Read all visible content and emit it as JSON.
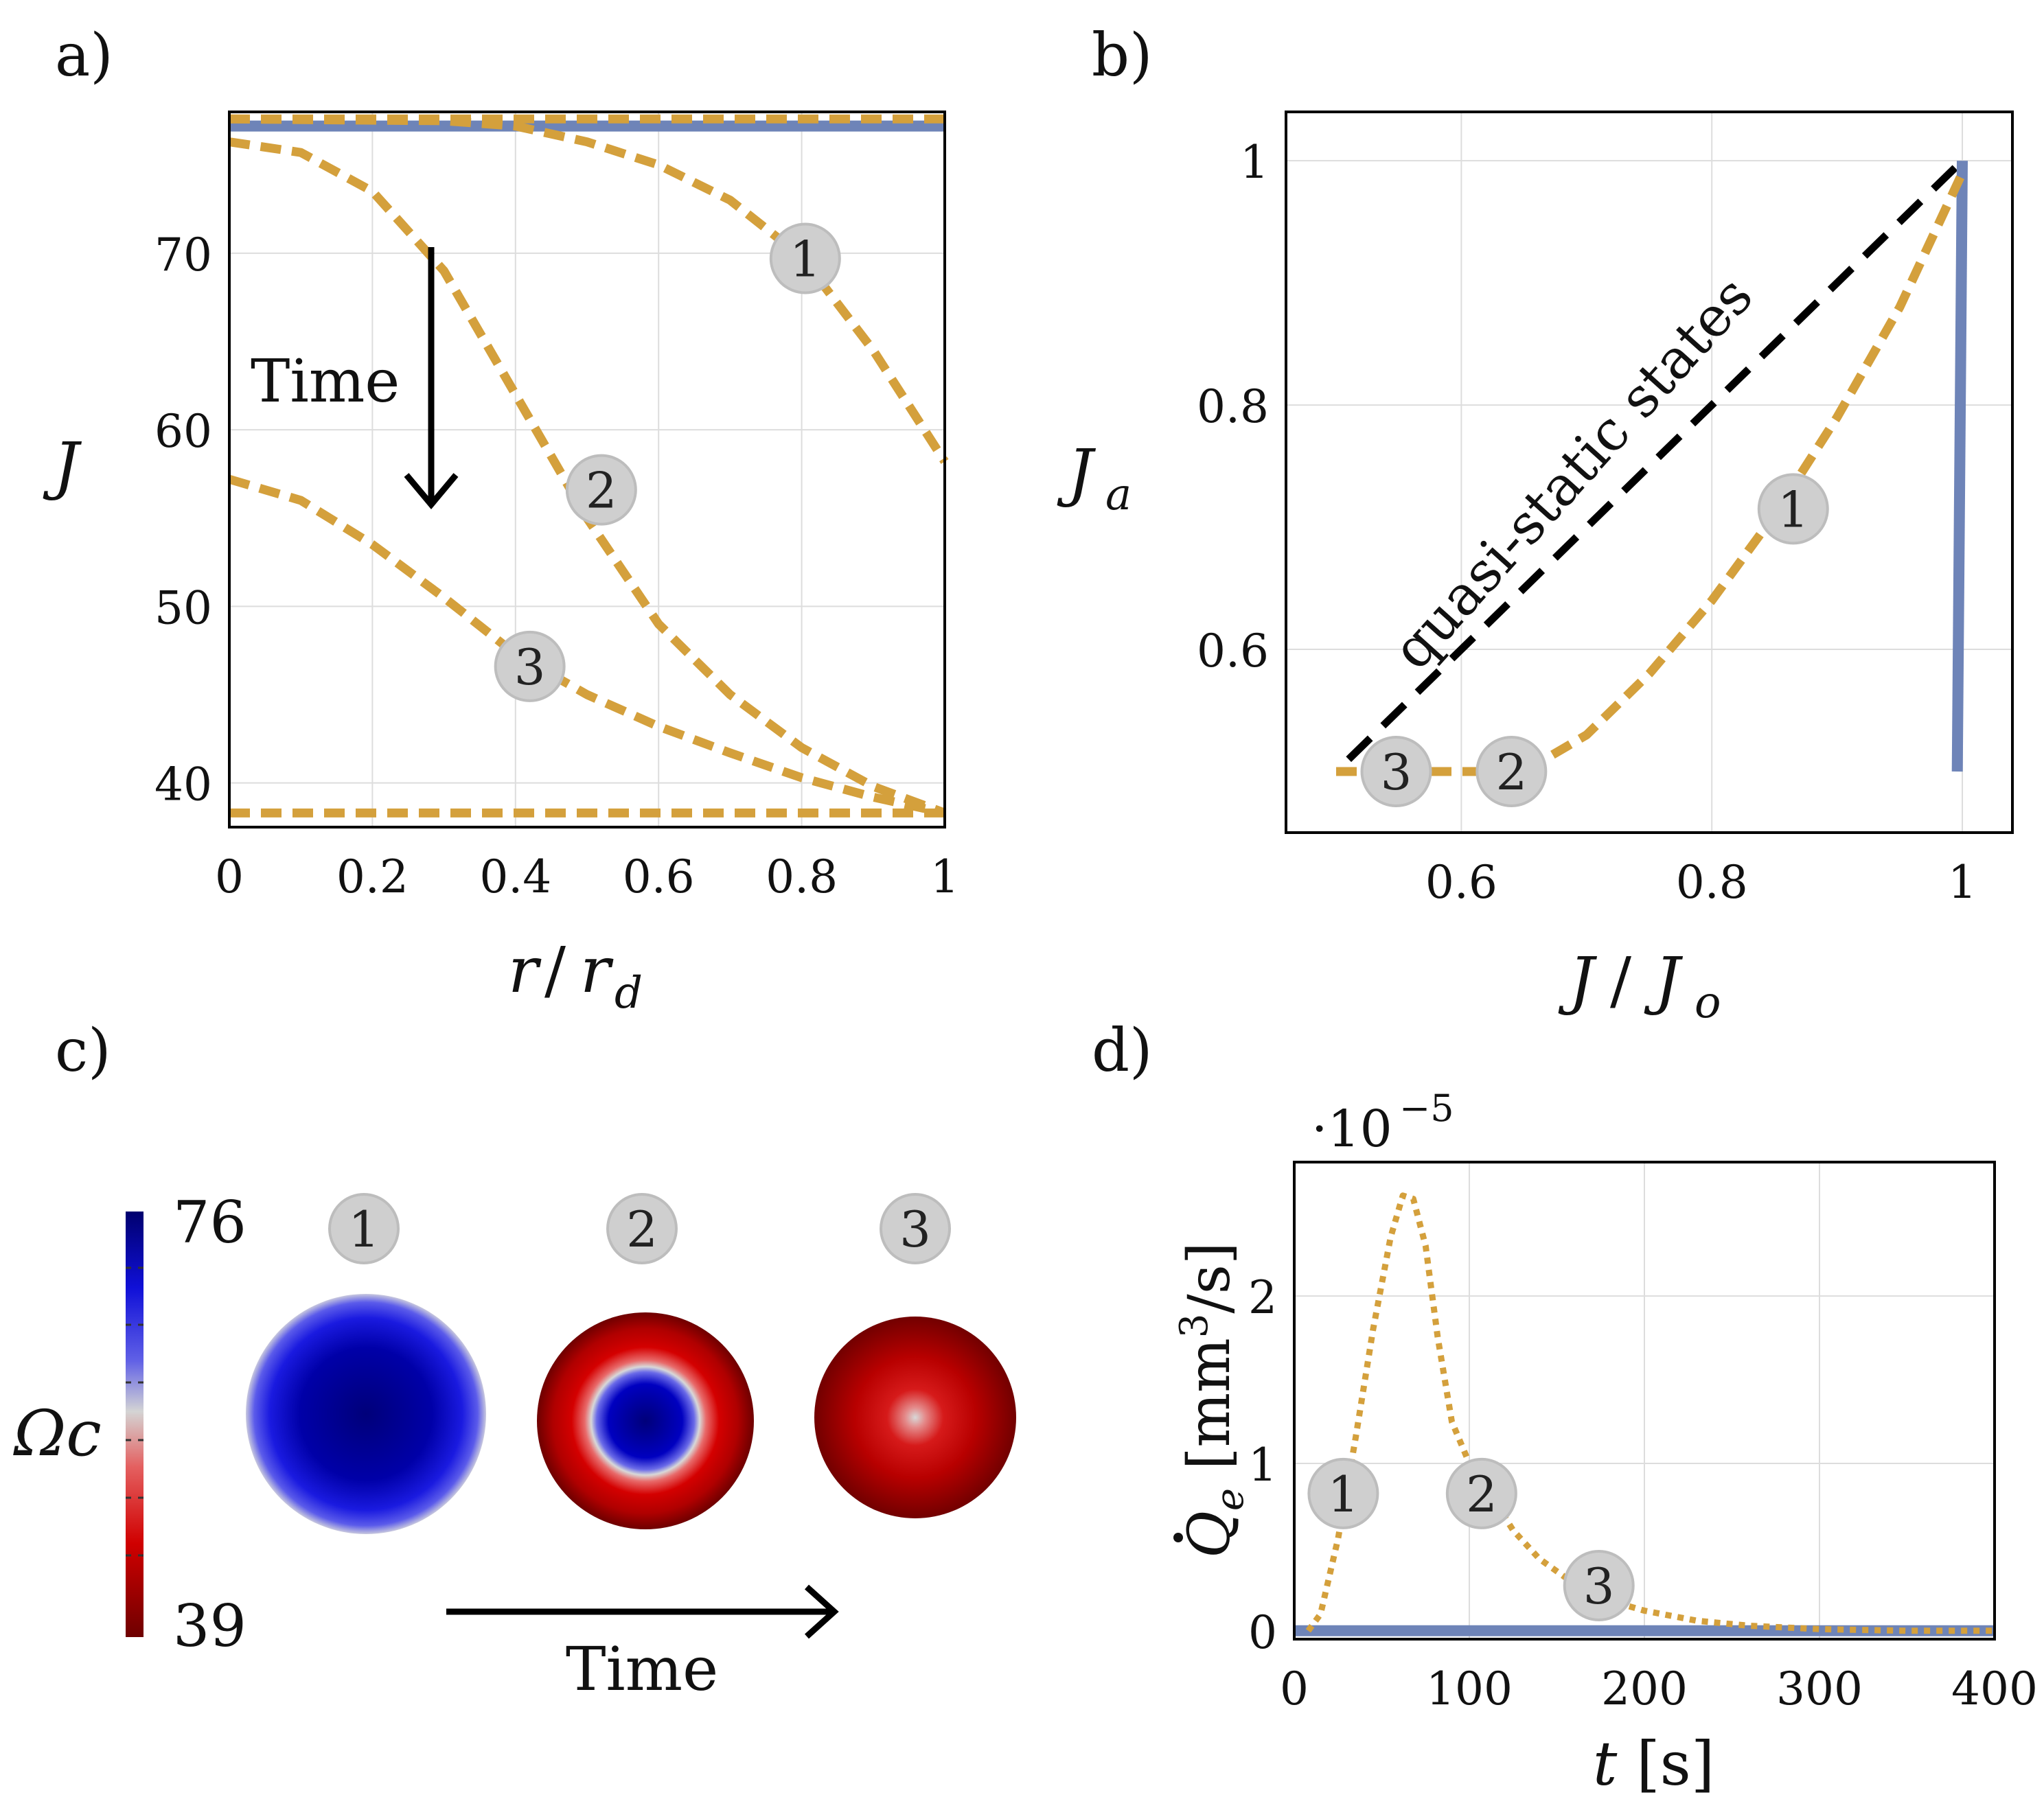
{
  "panels": {
    "a": {
      "label": "a)"
    },
    "b": {
      "label": "b)"
    },
    "c": {
      "label": "c)"
    },
    "d": {
      "label": "d)"
    }
  },
  "colors": {
    "gold": "#D4A03C",
    "blue": "#6E84B8",
    "black": "#000000",
    "grid": "#dddddd",
    "badge": "#cfcfcf"
  },
  "chart_data": [
    {
      "id": "a",
      "type": "line",
      "xlabel": "r/r_d",
      "ylabel": "J",
      "xlim": [
        0,
        1
      ],
      "ylim": [
        37.5,
        78
      ],
      "xticks": [
        "0",
        "0.2",
        "0.4",
        "0.6",
        "0.8",
        "1"
      ],
      "yticks": [
        "40",
        "50",
        "60",
        "70"
      ],
      "ytick_values": [
        40,
        50,
        60,
        70
      ],
      "xtick_values": [
        0,
        0.2,
        0.4,
        0.6,
        0.8,
        1
      ],
      "annotation": "Time",
      "grid": true,
      "series": [
        {
          "style": "solid-blue",
          "x": [
            0,
            1
          ],
          "y": [
            77.2,
            77.2
          ]
        },
        {
          "style": "dashed-gold",
          "x": [
            0,
            1
          ],
          "y": [
            77.6,
            77.6
          ]
        },
        {
          "style": "dashed-gold",
          "badge": "1",
          "x": [
            0,
            0.3,
            0.4,
            0.5,
            0.6,
            0.7,
            0.8,
            0.9,
            1.0
          ],
          "y": [
            77.6,
            77.5,
            77.2,
            76.3,
            75.0,
            73.0,
            69.8,
            64.5,
            58.2
          ]
        },
        {
          "style": "dashed-gold",
          "badge": "2",
          "x": [
            0,
            0.1,
            0.2,
            0.3,
            0.4,
            0.5,
            0.6,
            0.7,
            0.8,
            0.9,
            1.0
          ],
          "y": [
            76.3,
            75.7,
            73.5,
            69.0,
            62.0,
            55.0,
            49.0,
            45.0,
            42.0,
            39.8,
            38.3
          ]
        },
        {
          "style": "dashed-gold",
          "badge": "3",
          "x": [
            0,
            0.1,
            0.2,
            0.3,
            0.4,
            0.5,
            0.6,
            0.7,
            0.8,
            0.9,
            1.0
          ],
          "y": [
            57.2,
            56.0,
            53.5,
            50.5,
            47.3,
            45.0,
            43.2,
            41.7,
            40.3,
            39.2,
            38.3
          ]
        },
        {
          "style": "dashed-gold",
          "x": [
            0,
            1
          ],
          "y": [
            38.3,
            38.3
          ]
        }
      ],
      "badges": [
        {
          "text": "1",
          "x": 0.805,
          "y": 69.7
        },
        {
          "text": "2",
          "x": 0.52,
          "y": 56.6
        },
        {
          "text": "3",
          "x": 0.42,
          "y": 46.6
        }
      ]
    },
    {
      "id": "b",
      "type": "line",
      "xlabel": "J/J_o",
      "ylabel": "J_a",
      "xlim": [
        0.46,
        1.04
      ],
      "ylim": [
        0.45,
        1.04
      ],
      "xticks": [
        "0.6",
        "0.8",
        "1"
      ],
      "xtick_values": [
        0.6,
        0.8,
        1.0
      ],
      "yticks": [
        "0.6",
        "0.8",
        "1"
      ],
      "ytick_values": [
        0.6,
        0.8,
        1.0
      ],
      "annotation": "quasi-static states",
      "grid": true,
      "series": [
        {
          "style": "dashed-black",
          "x": [
            0.51,
            1.0
          ],
          "y": [
            0.51,
            1.0
          ]
        },
        {
          "style": "solid-blue",
          "x": [
            0.996,
            1.0
          ],
          "y": [
            0.5,
            1.0
          ]
        },
        {
          "style": "dashed-gold",
          "x": [
            0.5,
            0.6,
            0.65,
            0.7,
            0.75,
            0.8,
            0.85,
            0.9,
            0.95,
            1.0
          ],
          "y": [
            0.5,
            0.5,
            0.5,
            0.53,
            0.58,
            0.64,
            0.71,
            0.79,
            0.88,
            0.99
          ]
        }
      ],
      "badges": [
        {
          "text": "1",
          "x": 0.865,
          "y": 0.715
        },
        {
          "text": "2",
          "x": 0.64,
          "y": 0.5
        },
        {
          "text": "3",
          "x": 0.548,
          "y": 0.5
        }
      ]
    },
    {
      "id": "c",
      "type": "heatmap",
      "colorbar_label": "Ωc",
      "colorbar_max": "76",
      "colorbar_min": "39",
      "annotation": "Time",
      "badges": [
        "1",
        "2",
        "3"
      ]
    },
    {
      "id": "d",
      "type": "line",
      "xlabel": "t [s]",
      "ylabel": "Q̇_e [mm³/s]",
      "scale_label": "·10",
      "scale_exponent": "−5",
      "xlim": [
        0,
        400
      ],
      "ylim": [
        -0.05,
        2.8
      ],
      "xticks": [
        "0",
        "100",
        "200",
        "300",
        "400"
      ],
      "xtick_values": [
        0,
        100,
        200,
        300,
        400
      ],
      "yticks": [
        "0",
        "1",
        "2"
      ],
      "ytick_values": [
        0,
        1,
        2
      ],
      "grid": true,
      "series": [
        {
          "style": "solid-blue",
          "x": [
            0,
            400
          ],
          "y": [
            0,
            0
          ]
        },
        {
          "style": "dotted-gold",
          "x": [
            8,
            15,
            25,
            35,
            45,
            55,
            62,
            68,
            75,
            82,
            90,
            100,
            110,
            125,
            140,
            160,
            180,
            200,
            230,
            260,
            300,
            350,
            400
          ],
          "y": [
            0.0,
            0.1,
            0.55,
            1.15,
            1.8,
            2.35,
            2.6,
            2.58,
            2.3,
            1.75,
            1.25,
            1.0,
            0.85,
            0.6,
            0.43,
            0.28,
            0.18,
            0.12,
            0.06,
            0.03,
            0.01,
            0.0,
            0.0
          ]
        }
      ],
      "badges": [
        {
          "text": "1",
          "x": 28,
          "y": 0.82
        },
        {
          "text": "2",
          "x": 107,
          "y": 0.82
        },
        {
          "text": "3",
          "x": 174,
          "y": 0.27
        }
      ]
    }
  ]
}
